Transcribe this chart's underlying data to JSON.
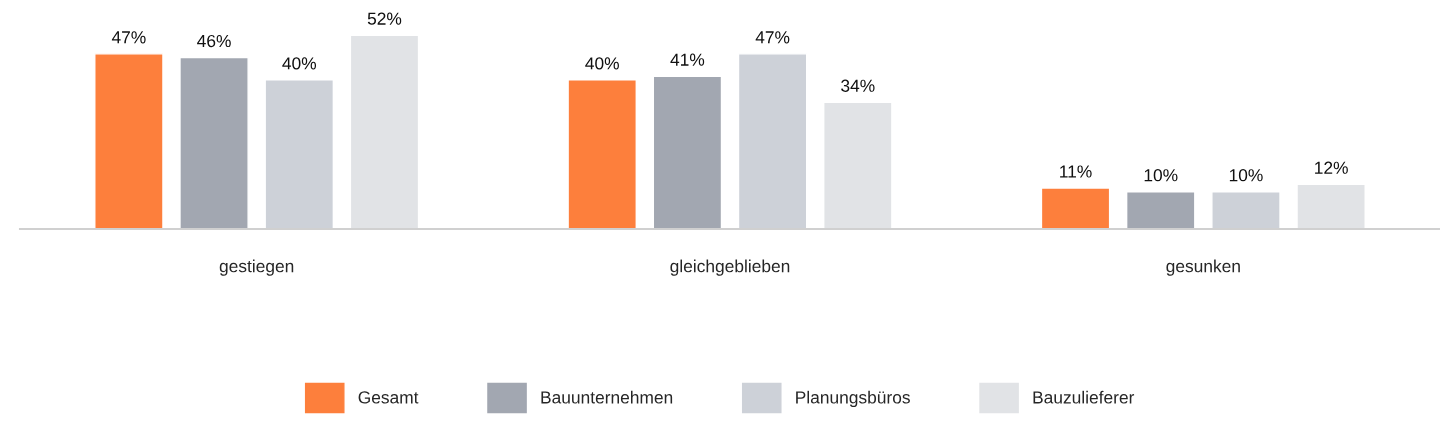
{
  "chart_data": {
    "type": "bar",
    "categories": [
      "gestiegen",
      "gleichgeblieben",
      "gesunken"
    ],
    "series": [
      {
        "name": "Gesamt",
        "color": "#fd7f3c",
        "values": [
          47,
          40,
          11
        ],
        "value_labels": [
          "47%",
          "40%",
          "11%"
        ]
      },
      {
        "name": "Bauunternehmen",
        "color": "#a2a7b1",
        "values": [
          46,
          41,
          10
        ],
        "value_labels": [
          "46%",
          "41%",
          "10%"
        ]
      },
      {
        "name": "Planungsbüros",
        "color": "#cdd1d8",
        "values": [
          40,
          47,
          10
        ],
        "value_labels": [
          "40%",
          "47%",
          "10%"
        ]
      },
      {
        "name": "Bauzulieferer",
        "color": "#e1e3e6",
        "values": [
          52,
          34,
          12
        ],
        "value_labels": [
          "52%",
          "34%",
          "12%"
        ]
      }
    ],
    "legend": "bottom",
    "grid": false,
    "tick_labels": "x"
  }
}
